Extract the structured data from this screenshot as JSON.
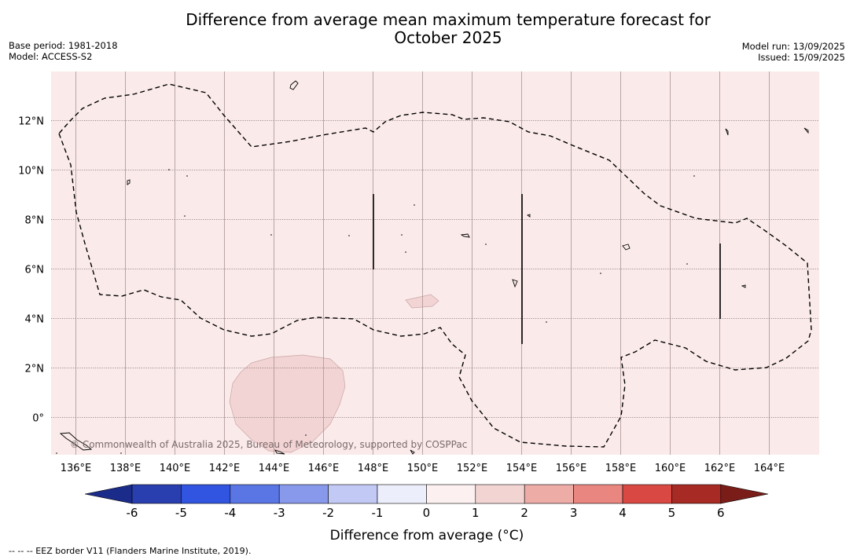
{
  "title": {
    "line1": "Difference from average mean maximum temperature forecast for",
    "line2": "October 2025"
  },
  "meta": {
    "base_period": "Base period: 1981-2018",
    "model": "Model: ACCESS-S2",
    "model_run": "Model run: 13/09/2025",
    "issued": "Issued: 15/09/2025"
  },
  "map": {
    "background_color": "#fbeaea",
    "patch_color": "#f2d4d4",
    "longitude_ticks": [
      "136°E",
      "138°E",
      "140°E",
      "142°E",
      "144°E",
      "146°E",
      "148°E",
      "150°E",
      "152°E",
      "154°E",
      "156°E",
      "158°E",
      "160°E",
      "162°E",
      "164°E"
    ],
    "latitude_ticks": [
      "12°N",
      "10°N",
      "8°N",
      "6°N",
      "4°N",
      "2°N",
      "0°"
    ],
    "copyright": "© Commonwealth of Australia 2025, Bureau of Meteorology, supported by COSPPac"
  },
  "colorbar": {
    "ticks": [
      "-6",
      "-5",
      "-4",
      "-3",
      "-2",
      "-1",
      "0",
      "1",
      "2",
      "3",
      "4",
      "5",
      "6"
    ],
    "colors": [
      "#2a3faf",
      "#3155e0",
      "#5a75e4",
      "#8898ea",
      "#c2c9f4",
      "#eceefc",
      "#fdf0f0",
      "#f2d5d3",
      "#edaca6",
      "#e8867f",
      "#d94842",
      "#a82a24"
    ],
    "under_color": "#1b2b8a",
    "over_color": "#7a1c18",
    "label": "Difference from average (°C)"
  },
  "footnote": "--  --  -- EEZ border V11 (Flanders Marine Institute, 2019)."
}
